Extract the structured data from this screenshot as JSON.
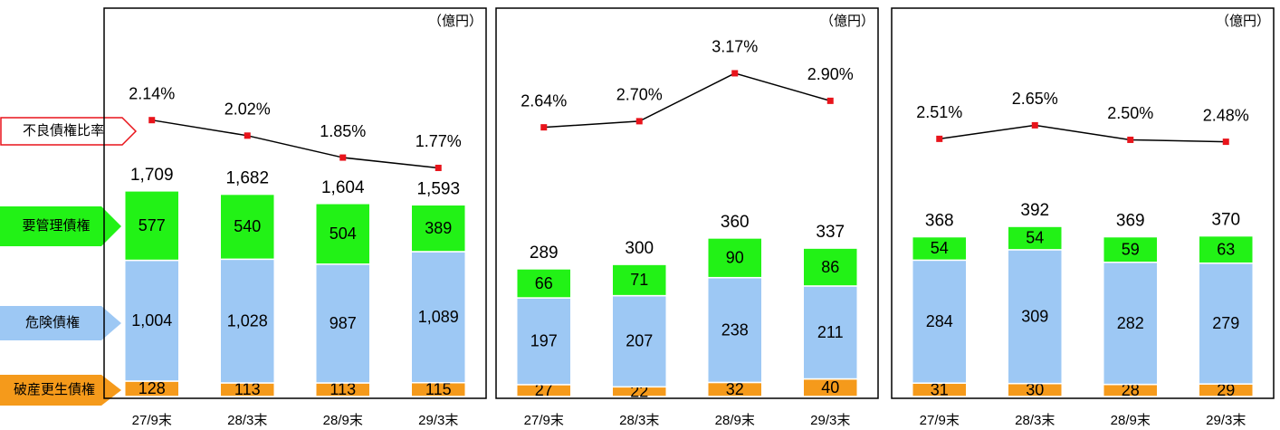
{
  "chart_data": [
    {
      "type": "stacked_bar_line",
      "unit_label": "（億円）",
      "categories": [
        "27/9末",
        "28/3末",
        "28/9末",
        "29/3末"
      ],
      "ylim": [
        0,
        3220
      ],
      "y2lim": [
        0,
        3
      ],
      "series": [
        {
          "name": "破産更生債権",
          "color": "#f59a1b",
          "values": [
            128,
            113,
            113,
            115
          ]
        },
        {
          "name": "危険債権",
          "color": "#9dc8f4",
          "values": [
            1004,
            1028,
            987,
            1089
          ],
          "value_labels": [
            "1,004",
            "1,028",
            "987",
            "1,089"
          ]
        },
        {
          "name": "要管理債権",
          "color": "#22f216",
          "values": [
            577,
            540,
            504,
            389
          ]
        },
        {
          "name": "不良債権比率",
          "type": "line",
          "axis": "y2",
          "color": "#000000",
          "marker_color": "#e8141b",
          "values": [
            2.14,
            2.02,
            1.85,
            1.77
          ],
          "value_labels": [
            "2.14%",
            "2.02%",
            "1.85%",
            "1.77%"
          ]
        }
      ],
      "totals": {
        "values": [
          1709,
          1682,
          1604,
          1593
        ],
        "value_labels": [
          "1,709",
          "1,682",
          "1,604",
          "1,593"
        ]
      }
    },
    {
      "type": "stacked_bar_line",
      "unit_label": "（億円）",
      "categories": [
        "27/9末",
        "28/3末",
        "28/9末",
        "29/3末"
      ],
      "ylim": [
        0,
        880
      ],
      "y2lim": [
        0,
        3.8
      ],
      "series": [
        {
          "name": "破産更生債権",
          "color": "#f59a1b",
          "values": [
            27,
            22,
            32,
            40
          ]
        },
        {
          "name": "危険債権",
          "color": "#9dc8f4",
          "values": [
            197,
            207,
            238,
            211
          ]
        },
        {
          "name": "要管理債権",
          "color": "#22f216",
          "values": [
            66,
            71,
            90,
            86
          ]
        },
        {
          "name": "不良債権比率",
          "type": "line",
          "axis": "y2",
          "color": "#000000",
          "marker_color": "#e8141b",
          "values": [
            2.64,
            2.7,
            3.17,
            2.9
          ],
          "value_labels": [
            "2.64%",
            "2.70%",
            "3.17%",
            "2.90%"
          ]
        }
      ],
      "totals": {
        "values": [
          289,
          300,
          360,
          337
        ]
      }
    },
    {
      "type": "stacked_bar_line",
      "unit_label": "（億円）",
      "categories": [
        "27/9末",
        "28/3末",
        "28/9末",
        "29/3末"
      ],
      "ylim": [
        0,
        895
      ],
      "y2lim": [
        -0.15,
        3.85
      ],
      "series": [
        {
          "name": "破産更生債権",
          "color": "#f59a1b",
          "values": [
            31,
            30,
            28,
            29
          ]
        },
        {
          "name": "危険債権",
          "color": "#9dc8f4",
          "values": [
            284,
            309,
            282,
            279
          ]
        },
        {
          "name": "要管理債権",
          "color": "#22f216",
          "values": [
            54,
            54,
            59,
            63
          ]
        },
        {
          "name": "不良債権比率",
          "type": "line",
          "axis": "y2",
          "color": "#000000",
          "marker_color": "#e8141b",
          "values": [
            2.51,
            2.65,
            2.5,
            2.48
          ],
          "value_labels": [
            "2.51%",
            "2.65%",
            "2.50%",
            "2.48%"
          ]
        }
      ],
      "totals": {
        "values": [
          368,
          392,
          369,
          370
        ]
      }
    }
  ]
}
